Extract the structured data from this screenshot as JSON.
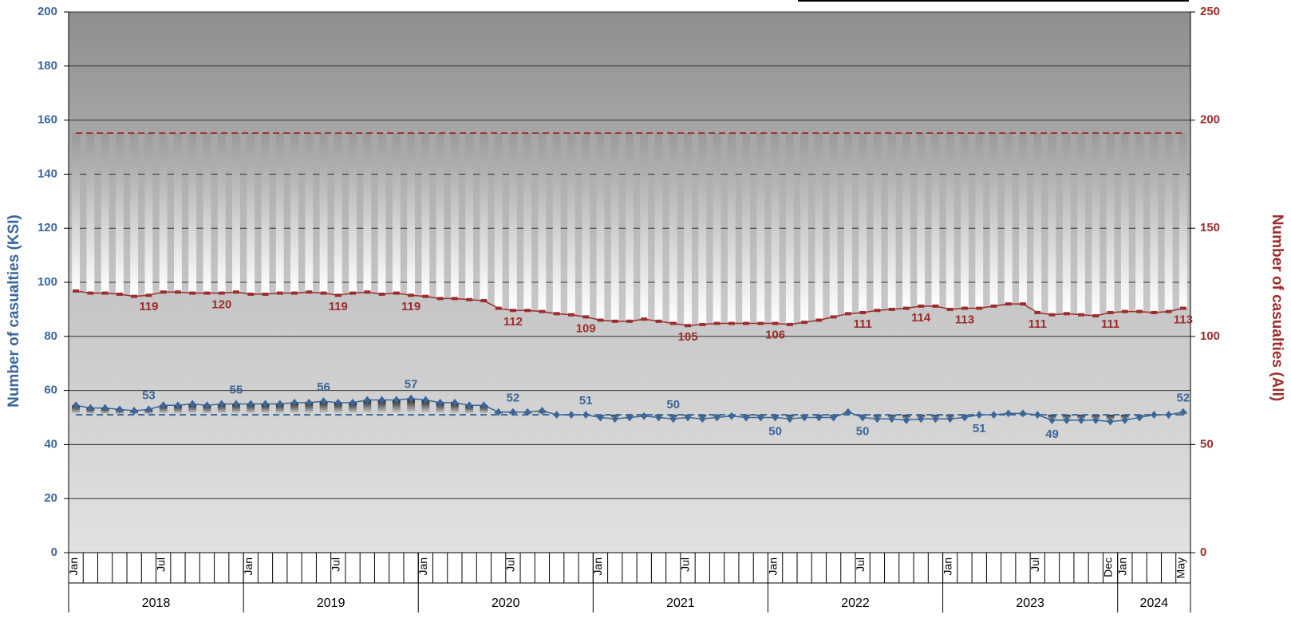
{
  "chart_data": {
    "type": "line",
    "y_label": "Number of casualties (KSI)",
    "y2_label": "Number of casualties (All)",
    "categories": [
      "Jan",
      null,
      null,
      null,
      null,
      null,
      "Jul",
      null,
      null,
      null,
      null,
      null,
      "Jan",
      null,
      null,
      null,
      null,
      null,
      "Jul",
      null,
      null,
      null,
      null,
      null,
      "Jan",
      null,
      null,
      null,
      null,
      null,
      "Jul",
      null,
      null,
      null,
      null,
      null,
      "Jan",
      null,
      null,
      null,
      null,
      null,
      "Jul",
      null,
      null,
      null,
      null,
      null,
      "Jan",
      null,
      null,
      null,
      null,
      null,
      "Jul",
      null,
      null,
      null,
      null,
      null,
      "Jan",
      null,
      null,
      null,
      null,
      null,
      "Jul",
      null,
      null,
      null,
      null,
      "Dec",
      "Jan",
      null,
      null,
      null,
      "May"
    ],
    "x_groups": [
      {
        "label": "2018",
        "count": 12
      },
      {
        "label": "2019",
        "count": 12
      },
      {
        "label": "2020",
        "count": 12
      },
      {
        "label": "2021",
        "count": 12
      },
      {
        "label": "2022",
        "count": 12
      },
      {
        "label": "2023",
        "count": 12
      },
      {
        "label": "2024",
        "count": 5
      }
    ],
    "series": [
      {
        "color": "#3a6699",
        "axis": "y",
        "values": [
          54.5,
          53.5,
          53.5,
          53,
          52.5,
          53,
          54.5,
          54.5,
          55,
          54.5,
          55,
          55,
          55,
          55,
          55,
          55.5,
          55.5,
          56,
          55.5,
          55.5,
          56.5,
          56.5,
          56.5,
          57,
          56.5,
          55.5,
          55.5,
          54.5,
          54.5,
          52,
          52,
          52,
          52.5,
          51,
          51,
          51,
          50,
          49.5,
          50,
          50.5,
          50,
          49.5,
          50,
          49.5,
          50,
          50.5,
          50,
          50,
          50,
          49.5,
          50,
          50,
          50,
          52,
          50,
          49.5,
          49.5,
          49,
          49.5,
          49.5,
          49.5,
          50,
          51,
          51,
          51.5,
          51.5,
          51,
          49,
          49,
          49,
          49,
          48.5,
          49,
          50,
          51,
          51,
          52
        ],
        "value_labels": [
          null,
          null,
          null,
          null,
          null,
          "53",
          null,
          null,
          null,
          null,
          null,
          "55",
          null,
          null,
          null,
          null,
          null,
          "56",
          null,
          null,
          null,
          null,
          null,
          "57",
          null,
          null,
          null,
          null,
          null,
          null,
          "52",
          null,
          null,
          null,
          null,
          "51",
          null,
          null,
          null,
          null,
          null,
          "50",
          null,
          null,
          null,
          null,
          null,
          null,
          "50",
          null,
          null,
          null,
          null,
          null,
          "50",
          null,
          null,
          null,
          null,
          null,
          null,
          null,
          "51",
          null,
          null,
          null,
          null,
          "49",
          null,
          null,
          null,
          null,
          null,
          null,
          null,
          null,
          "52"
        ],
        "baseline": 51
      },
      {
        "color": "#9b2d2d",
        "axis": "y2",
        "values": [
          121,
          120,
          120,
          119.5,
          118.5,
          119,
          120.5,
          120.5,
          120,
          120,
          120,
          120.5,
          119.5,
          119.5,
          120,
          120,
          120.5,
          120,
          119,
          120,
          120.5,
          119.5,
          120,
          119,
          118.5,
          117.5,
          117.5,
          117,
          116.5,
          113,
          112,
          112,
          111.5,
          110.5,
          110,
          109,
          107.5,
          107,
          107,
          108,
          107,
          106,
          105,
          105.5,
          106,
          106,
          106,
          106,
          106,
          105.5,
          106.5,
          107.5,
          109,
          110.5,
          111,
          112,
          112.5,
          113,
          114,
          114,
          112.5,
          113,
          113,
          114,
          115,
          115,
          111,
          110,
          110.5,
          110,
          109.5,
          111,
          111.5,
          111.5,
          111,
          111.5,
          113
        ],
        "value_labels": [
          null,
          null,
          null,
          null,
          null,
          "119",
          null,
          null,
          null,
          null,
          "120",
          null,
          null,
          null,
          null,
          null,
          null,
          null,
          "119",
          null,
          null,
          null,
          null,
          "119",
          null,
          null,
          null,
          null,
          null,
          null,
          "112",
          null,
          null,
          null,
          null,
          "109",
          null,
          null,
          null,
          null,
          null,
          null,
          "105",
          null,
          null,
          null,
          null,
          null,
          "106",
          null,
          null,
          null,
          null,
          null,
          "111",
          null,
          null,
          null,
          "114",
          null,
          null,
          "113",
          null,
          null,
          null,
          null,
          "111",
          null,
          null,
          null,
          null,
          "111",
          null,
          null,
          null,
          null,
          "113"
        ],
        "baseline": 194
      }
    ],
    "ylim": [
      0,
      200
    ],
    "yticks": [
      0,
      20,
      40,
      60,
      80,
      100,
      120,
      140,
      160,
      180,
      200
    ],
    "y2lim": [
      0,
      250
    ],
    "y2ticks": [
      0,
      50,
      100,
      150,
      200,
      250
    ],
    "grid": true
  }
}
